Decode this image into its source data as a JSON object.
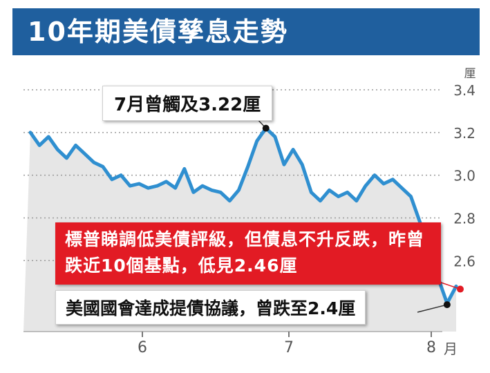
{
  "header": {
    "title": "10年期美債孳息走勢"
  },
  "colors": {
    "title_bar": "#1f5f9e",
    "line": "#2f8fd0",
    "area": "#e6e6e6",
    "red": "#e21b24"
  },
  "chart_data": {
    "type": "area",
    "title": "10年期美債孳息走勢",
    "ylabel": "厘",
    "xlabel": "月",
    "ylim": [
      2.3,
      3.4
    ],
    "yticks": [
      "3.4",
      "3.2",
      "3.0",
      "2.8",
      "2.6"
    ],
    "xticks": [
      "6",
      "7",
      "8"
    ],
    "grid": true,
    "series": [
      {
        "values": [
          3.2,
          3.14,
          3.18,
          3.12,
          3.08,
          3.14,
          3.1,
          3.06,
          3.04,
          2.98,
          3.0,
          2.95,
          2.96,
          2.94,
          2.95,
          2.97,
          2.94,
          3.03,
          2.92,
          2.95,
          2.93,
          2.92,
          2.88,
          2.93,
          3.04,
          3.16,
          3.22,
          3.18,
          3.05,
          3.12,
          3.05,
          2.92,
          2.88,
          2.93,
          2.9,
          2.92,
          2.88,
          2.95,
          3.0,
          2.96,
          2.98,
          2.94,
          2.9,
          2.78,
          2.66,
          2.52,
          2.4,
          2.48
        ]
      }
    ],
    "annotations": [
      {
        "text": "7月曾觸及3.22厘",
        "value": 3.22
      },
      {
        "text": "標普睇調低美債評級，但債息不升反跌，昨曾跌近10個基點，低見2.46厘",
        "value": 2.46
      },
      {
        "text": "美國國會達成提債協議，曾跌至2.4厘",
        "value": 2.4
      }
    ]
  }
}
